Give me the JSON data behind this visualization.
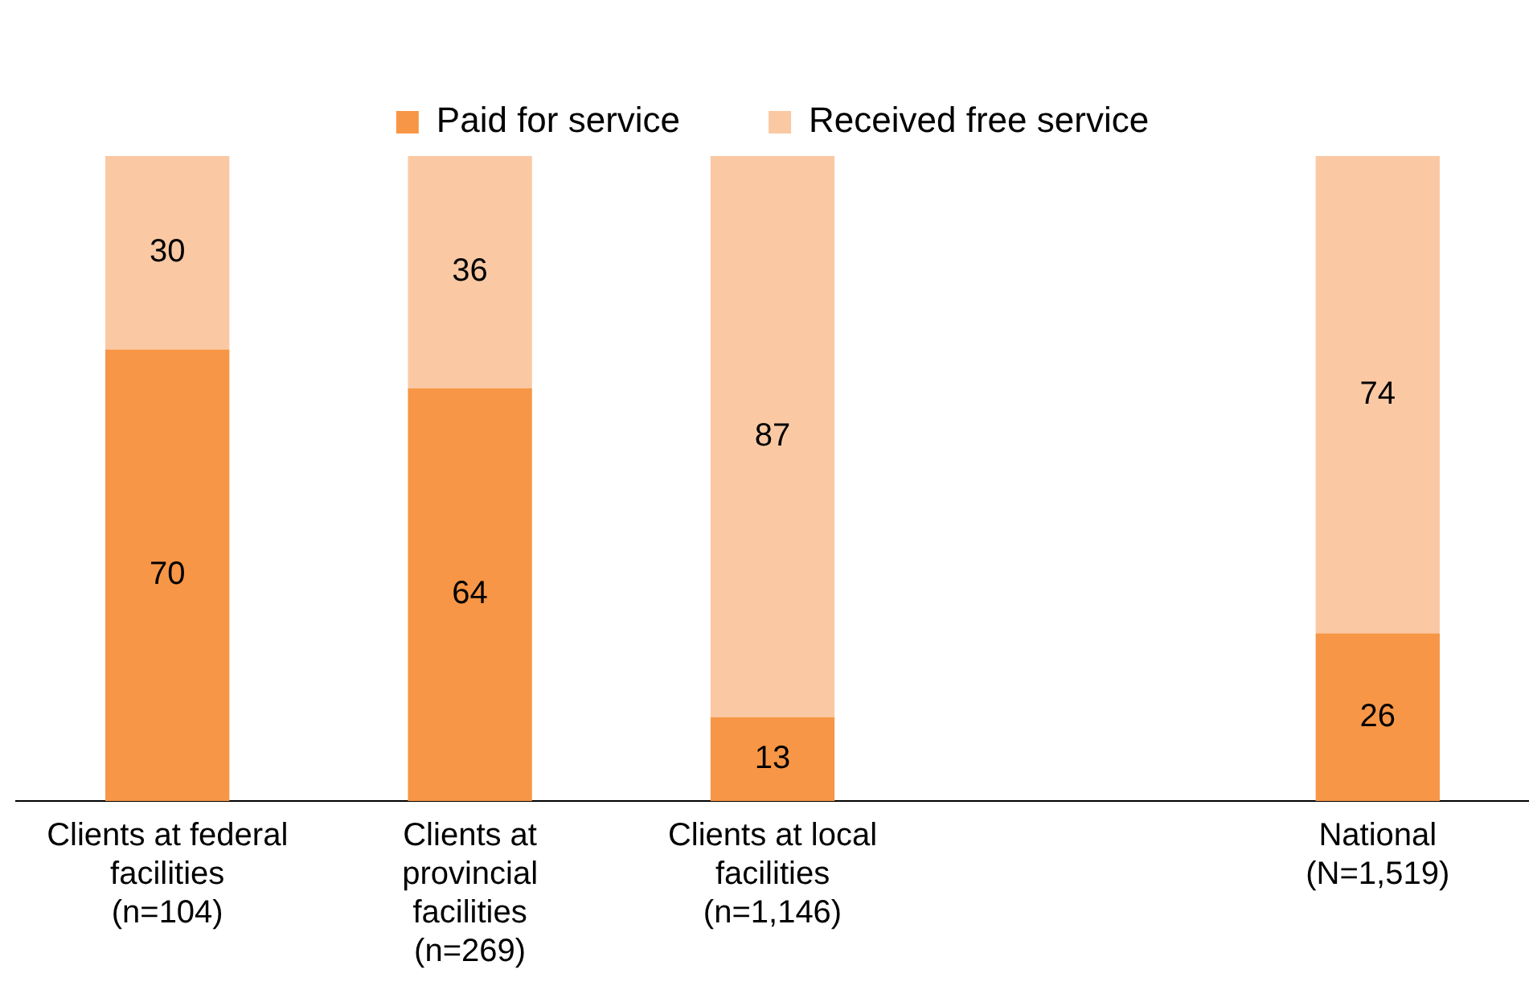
{
  "chart_data": {
    "type": "bar",
    "stacked": true,
    "categories": [
      "Clients at federal\nfacilities\n(n=104)",
      "Clients at\nprovincial\nfacilities\n(n=269)",
      "Clients at local\nfacilities\n(n=1,146)",
      null,
      "National\n(N=1,519)"
    ],
    "series": [
      {
        "name": "Paid for service",
        "color": "#f79646",
        "values": [
          70,
          64,
          13,
          null,
          26
        ]
      },
      {
        "name": "Received free service",
        "color": "#fac9a3",
        "values": [
          30,
          36,
          87,
          null,
          74
        ]
      }
    ],
    "ylim": [
      0,
      100
    ],
    "data_labels": true,
    "grid": false,
    "legend": "top",
    "tick_labels": "x"
  }
}
